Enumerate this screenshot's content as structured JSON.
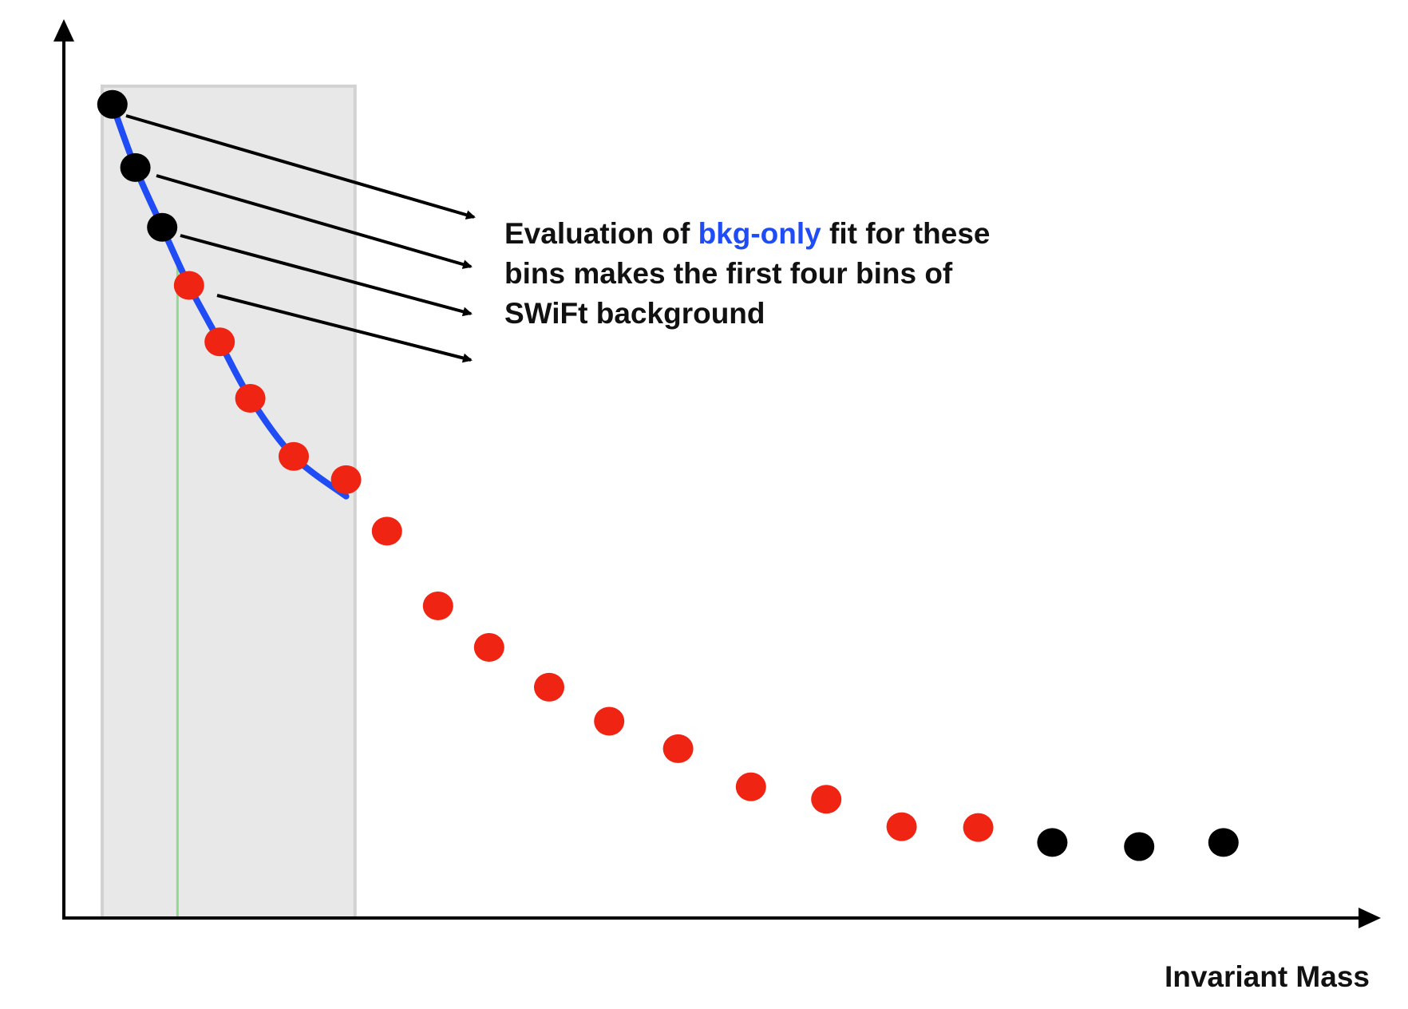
{
  "annotation": {
    "line1_pre": "Evaluation of ",
    "line1_highlight": "bkg-only",
    "line1_post": " fit for these",
    "line2": "bins makes the first four bins of",
    "line3": "SWiFt background"
  },
  "axes": {
    "xlabel": "Invariant Mass",
    "ylabel": ""
  },
  "colors": {
    "axis": "#000000",
    "window_fill": "#e8e8e8",
    "window_border": "#d2d2d2",
    "fit_curve": "#1f4cf5",
    "green_line": "#8fdc8f",
    "black_dot": "#000000",
    "red_dot": "#ef2412",
    "highlight_text": "#1f4cf5"
  },
  "chart_data": {
    "type": "scatter",
    "title": "",
    "xlabel": "Invariant Mass",
    "ylabel": "",
    "grid": false,
    "legend": "none",
    "xlim": [
      0,
      100
    ],
    "ylim": [
      0,
      100
    ],
    "points": [
      {
        "x": 3.8,
        "y": 98.0,
        "group": "black"
      },
      {
        "x": 5.6,
        "y": 90.4,
        "group": "black"
      },
      {
        "x": 7.7,
        "y": 83.2,
        "group": "black"
      },
      {
        "x": 9.8,
        "y": 76.2,
        "group": "red"
      },
      {
        "x": 12.2,
        "y": 69.4,
        "group": "red"
      },
      {
        "x": 14.6,
        "y": 62.6,
        "group": "red"
      },
      {
        "x": 18.0,
        "y": 55.6,
        "group": "red"
      },
      {
        "x": 22.1,
        "y": 52.8,
        "group": "red"
      },
      {
        "x": 25.3,
        "y": 46.6,
        "group": "red"
      },
      {
        "x": 29.3,
        "y": 37.6,
        "group": "red"
      },
      {
        "x": 33.3,
        "y": 32.6,
        "group": "red"
      },
      {
        "x": 38.0,
        "y": 27.8,
        "group": "red"
      },
      {
        "x": 42.7,
        "y": 23.7,
        "group": "red"
      },
      {
        "x": 48.1,
        "y": 20.4,
        "group": "red"
      },
      {
        "x": 53.8,
        "y": 15.8,
        "group": "red"
      },
      {
        "x": 59.7,
        "y": 14.3,
        "group": "red"
      },
      {
        "x": 65.6,
        "y": 11.0,
        "group": "red"
      },
      {
        "x": 71.6,
        "y": 10.9,
        "group": "red"
      },
      {
        "x": 77.4,
        "y": 9.1,
        "group": "black"
      },
      {
        "x": 84.2,
        "y": 8.6,
        "group": "black"
      },
      {
        "x": 90.8,
        "y": 9.1,
        "group": "black"
      }
    ],
    "fit_curve": {
      "name": "bkg-only",
      "x": [
        3.8,
        5.6,
        7.7,
        9.8,
        12.2,
        14.6,
        18.0,
        22.1
      ],
      "y": [
        98.0,
        90.4,
        83.2,
        76.2,
        69.4,
        62.6,
        55.6,
        50.8
      ]
    },
    "window": {
      "x_start": 3.0,
      "x_end": 22.8,
      "y_top": 100.2
    },
    "green_line_x": 8.9
  }
}
